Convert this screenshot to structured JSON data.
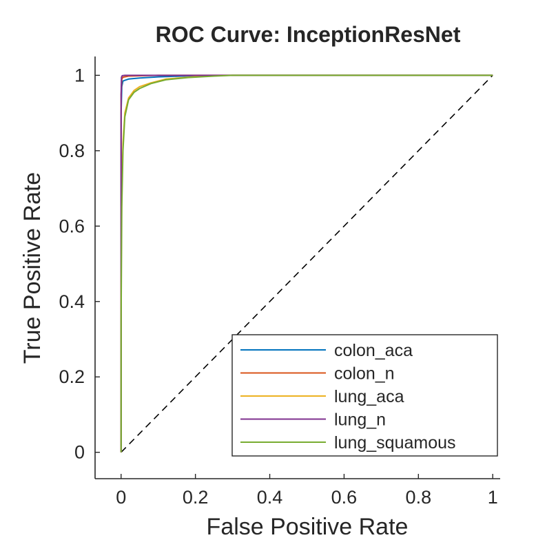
{
  "chart_data": {
    "type": "line",
    "title": "ROC Curve: InceptionResNet",
    "xlabel": "False Positive Rate",
    "ylabel": "True Positive Rate",
    "xlim": [
      -0.07,
      1.02
    ],
    "ylim": [
      -0.07,
      1.05
    ],
    "xticks": [
      0,
      0.2,
      0.4,
      0.6,
      0.8,
      1
    ],
    "yticks": [
      0,
      0.2,
      0.4,
      0.6,
      0.8,
      1
    ],
    "xtick_labels": [
      "0",
      "0.2",
      "0.4",
      "0.6",
      "0.8",
      "1"
    ],
    "ytick_labels": [
      "0",
      "0.2",
      "0.4",
      "0.6",
      "0.8",
      "1"
    ],
    "grid": false,
    "legend_position": "bottom-right",
    "reference_line": {
      "style": "dashed",
      "color": "#000000",
      "x": [
        0,
        1
      ],
      "y": [
        0,
        1
      ]
    },
    "series": [
      {
        "name": "colon_aca",
        "color": "#0072BD",
        "x": [
          0,
          0,
          0.002,
          0.005,
          0.02,
          0.05,
          0.1,
          0.2,
          0.3,
          1
        ],
        "y": [
          0,
          0.9,
          0.97,
          0.985,
          0.99,
          0.993,
          0.996,
          0.999,
          1,
          1
        ]
      },
      {
        "name": "colon_n",
        "color": "#D95319",
        "x": [
          0,
          0,
          0.002,
          0.005,
          0.02,
          0.1,
          1
        ],
        "y": [
          0,
          0.95,
          0.99,
          0.995,
          0.998,
          1,
          1
        ]
      },
      {
        "name": "lung_aca",
        "color": "#EDB120",
        "x": [
          0,
          0,
          0.002,
          0.005,
          0.01,
          0.02,
          0.035,
          0.05,
          0.08,
          0.12,
          0.18,
          0.25,
          0.3,
          1
        ],
        "y": [
          0,
          0.45,
          0.7,
          0.82,
          0.9,
          0.94,
          0.96,
          0.97,
          0.98,
          0.99,
          0.995,
          0.999,
          1,
          1
        ]
      },
      {
        "name": "lung_n",
        "color": "#7E2F8E",
        "x": [
          0,
          0,
          0.001,
          0.003,
          0.01,
          0.05,
          0.1,
          0.2,
          1
        ],
        "y": [
          0,
          0.95,
          0.995,
          0.999,
          1,
          1,
          1,
          1,
          1
        ]
      },
      {
        "name": "lung_squamous",
        "color": "#77AC30",
        "x": [
          0,
          0,
          0.002,
          0.005,
          0.01,
          0.02,
          0.035,
          0.05,
          0.08,
          0.12,
          0.18,
          0.25,
          0.3,
          1
        ],
        "y": [
          0,
          0.35,
          0.65,
          0.8,
          0.89,
          0.935,
          0.955,
          0.965,
          0.978,
          0.988,
          0.994,
          0.998,
          1,
          1
        ]
      }
    ]
  }
}
